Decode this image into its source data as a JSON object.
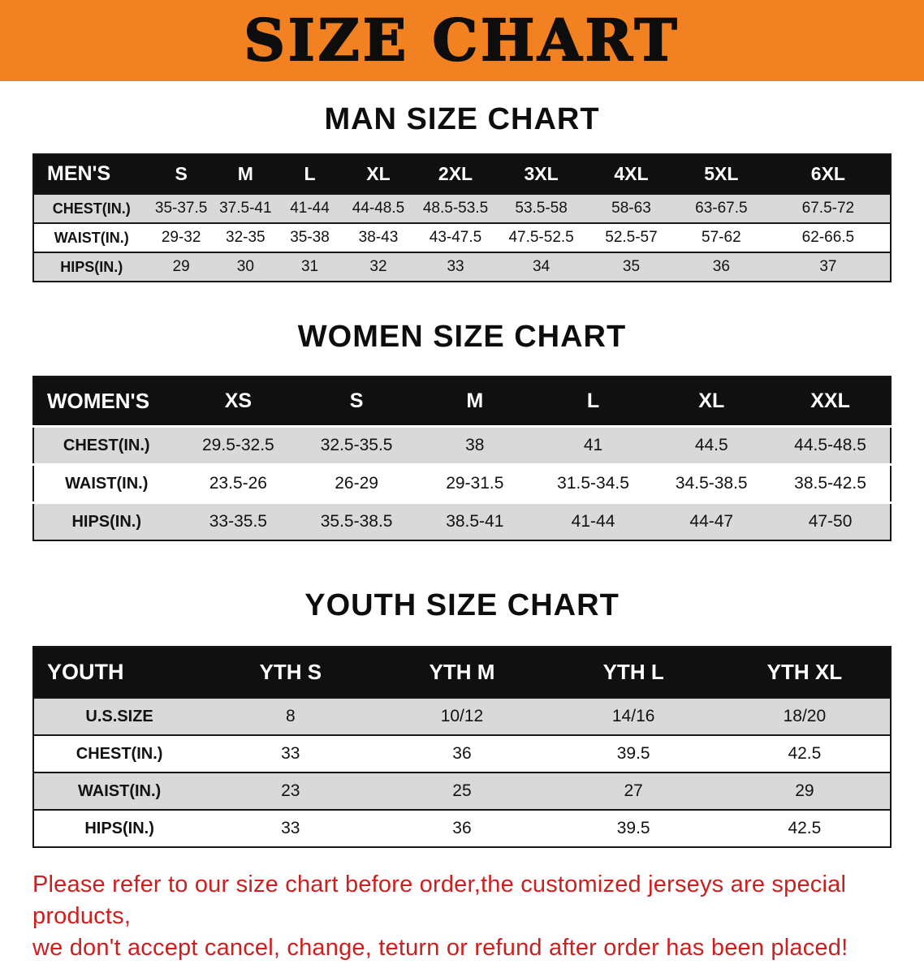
{
  "colors": {
    "banner_bg": "#f18121",
    "table_header_bg": "#101010",
    "row_gray": "#d9d9d9",
    "disclaimer_red": "#cd1f1f"
  },
  "banner": {
    "title": "SIZE CHART"
  },
  "sections": [
    {
      "heading": "MAN SIZE CHART",
      "table": {
        "col_widths": [
          "13.5%",
          "7.5%",
          "7.5%",
          "7.5%",
          "8.5%",
          "9.5%",
          "10.5%",
          "10.5%",
          "10.5%",
          "14.5%"
        ],
        "header": [
          "MEN'S",
          "S",
          "M",
          "L",
          "XL",
          "2XL",
          "3XL",
          "4XL",
          "5XL",
          "6XL"
        ],
        "rows": [
          [
            "CHEST(IN.)",
            "35-37.5",
            "37.5-41",
            "41-44",
            "44-48.5",
            "48.5-53.5",
            "53.5-58",
            "58-63",
            "63-67.5",
            "67.5-72"
          ],
          [
            "WAIST(IN.)",
            "29-32",
            "32-35",
            "35-38",
            "38-43",
            "43-47.5",
            "47.5-52.5",
            "52.5-57",
            "57-62",
            "62-66.5"
          ],
          [
            "HIPS(IN.)",
            "29",
            "30",
            "31",
            "32",
            "33",
            "34",
            "35",
            "36",
            "37"
          ]
        ]
      }
    },
    {
      "heading": "WOMEN SIZE CHART",
      "table": {
        "col_widths": [
          "17%",
          "13.8%",
          "13.8%",
          "13.8%",
          "13.8%",
          "13.8%",
          "14%"
        ],
        "header": [
          "WOMEN'S",
          "XS",
          "S",
          "M",
          "L",
          "XL",
          "XXL"
        ],
        "rows": [
          [
            "CHEST(IN.)",
            "29.5-32.5",
            "32.5-35.5",
            "38",
            "41",
            "44.5",
            "44.5-48.5"
          ],
          [
            "WAIST(IN.)",
            "23.5-26",
            "26-29",
            "29-31.5",
            "31.5-34.5",
            "34.5-38.5",
            "38.5-42.5"
          ],
          [
            "HIPS(IN.)",
            "33-35.5",
            "35.5-38.5",
            "38.5-41",
            "41-44",
            "44-47",
            "47-50"
          ]
        ]
      }
    },
    {
      "heading": "YOUTH SIZE CHART",
      "table": {
        "col_widths": [
          "20%",
          "20%",
          "20%",
          "20%",
          "20%"
        ],
        "header": [
          "YOUTH",
          "YTH S",
          "YTH M",
          "YTH L",
          "YTH XL"
        ],
        "rows": [
          [
            "U.S.SIZE",
            "8",
            "10/12",
            "14/16",
            "18/20"
          ],
          [
            "CHEST(IN.)",
            "33",
            "36",
            "39.5",
            "42.5"
          ],
          [
            "WAIST(IN.)",
            "23",
            "25",
            "27",
            "29"
          ],
          [
            "HIPS(IN.)",
            "33",
            "36",
            "39.5",
            "42.5"
          ]
        ]
      }
    }
  ],
  "disclaimer": {
    "line1": "Please refer to our size chart before order,the customized jerseys are special products,",
    "line2": "we don't accept cancel, change, teturn or refund after order has been placed!"
  }
}
